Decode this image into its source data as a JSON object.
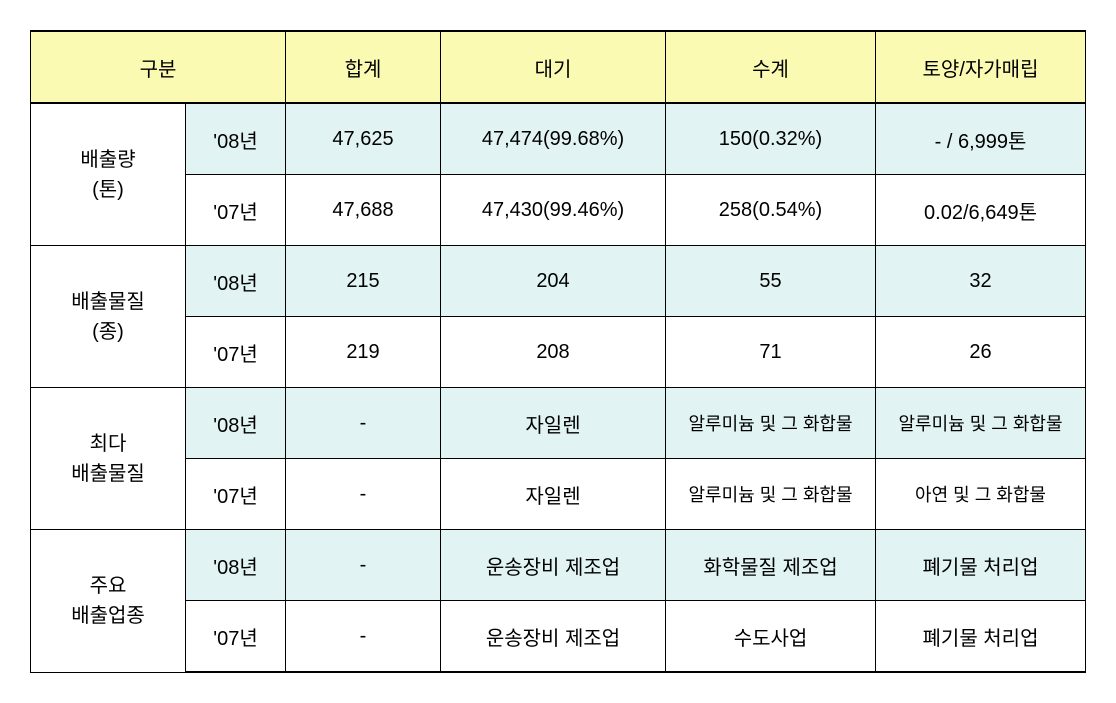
{
  "headers": {
    "category": "구분",
    "total": "합계",
    "air": "대기",
    "water": "수계",
    "soil": "토양/자가매립"
  },
  "rows": [
    {
      "label": "배출량\n(톤)",
      "y08": {
        "year": "'08년",
        "total": "47,625",
        "air": "47,474(99.68%)",
        "water": "150(0.32%)",
        "soil": "-  /  6,999톤"
      },
      "y07": {
        "year": "'07년",
        "total": "47,688",
        "air": "47,430(99.46%)",
        "water": "258(0.54%)",
        "soil": "0.02/6,649톤"
      }
    },
    {
      "label": "배출물질\n(종)",
      "y08": {
        "year": "'08년",
        "total": "215",
        "air": "204",
        "water": "55",
        "soil": "32"
      },
      "y07": {
        "year": "'07년",
        "total": "219",
        "air": "208",
        "water": "71",
        "soil": "26"
      }
    },
    {
      "label": "최다\n배출물질",
      "y08": {
        "year": "'08년",
        "total": "-",
        "air": "자일렌",
        "water": "알루미늄 및 그 화합물",
        "soil": "알루미늄 및 그 화합물"
      },
      "y07": {
        "year": "'07년",
        "total": "-",
        "air": "자일렌",
        "water": "알루미늄 및 그 화합물",
        "soil": "아연 및 그 화합물"
      }
    },
    {
      "label": "주요\n배출업종",
      "y08": {
        "year": "'08년",
        "total": "-",
        "air": "운송장비 제조업",
        "water": "화학물질 제조업",
        "soil": "폐기물 처리업"
      },
      "y07": {
        "year": "'07년",
        "total": "-",
        "air": "운송장비 제조업",
        "water": "수도사업",
        "soil": "폐기물 처리업"
      }
    }
  ],
  "colors": {
    "header_bg": "#fbfab2",
    "highlight_bg": "#e1f4f3",
    "border": "#000000",
    "background": "#ffffff"
  }
}
